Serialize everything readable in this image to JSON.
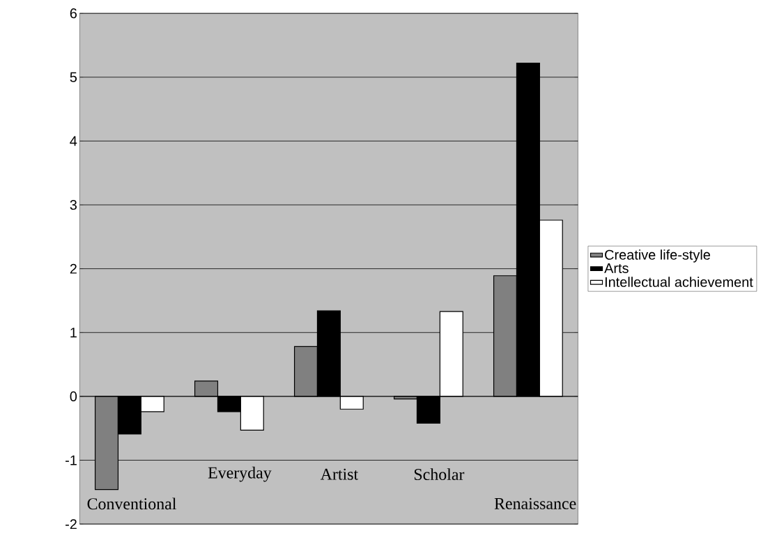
{
  "chart_data": {
    "type": "bar",
    "categories": [
      "Conventional",
      "Everyday",
      "Artist",
      "Scholar",
      "Renaissance"
    ],
    "series": [
      {
        "name": "Creative life-style",
        "color": "#808080",
        "values": [
          -1.46,
          0.24,
          0.78,
          -0.04,
          1.89
        ]
      },
      {
        "name": "Arts",
        "color": "#000000",
        "values": [
          -0.59,
          -0.24,
          1.34,
          -0.42,
          5.22
        ]
      },
      {
        "name": "Intellectual achievement",
        "color": "#ffffff",
        "values": [
          -0.24,
          -0.53,
          -0.2,
          1.33,
          2.76
        ]
      }
    ],
    "ylim": [
      -2,
      6
    ],
    "yticks": [
      -2,
      -1,
      0,
      1,
      2,
      3,
      4,
      5,
      6
    ],
    "grid": "y",
    "legend": "right"
  }
}
